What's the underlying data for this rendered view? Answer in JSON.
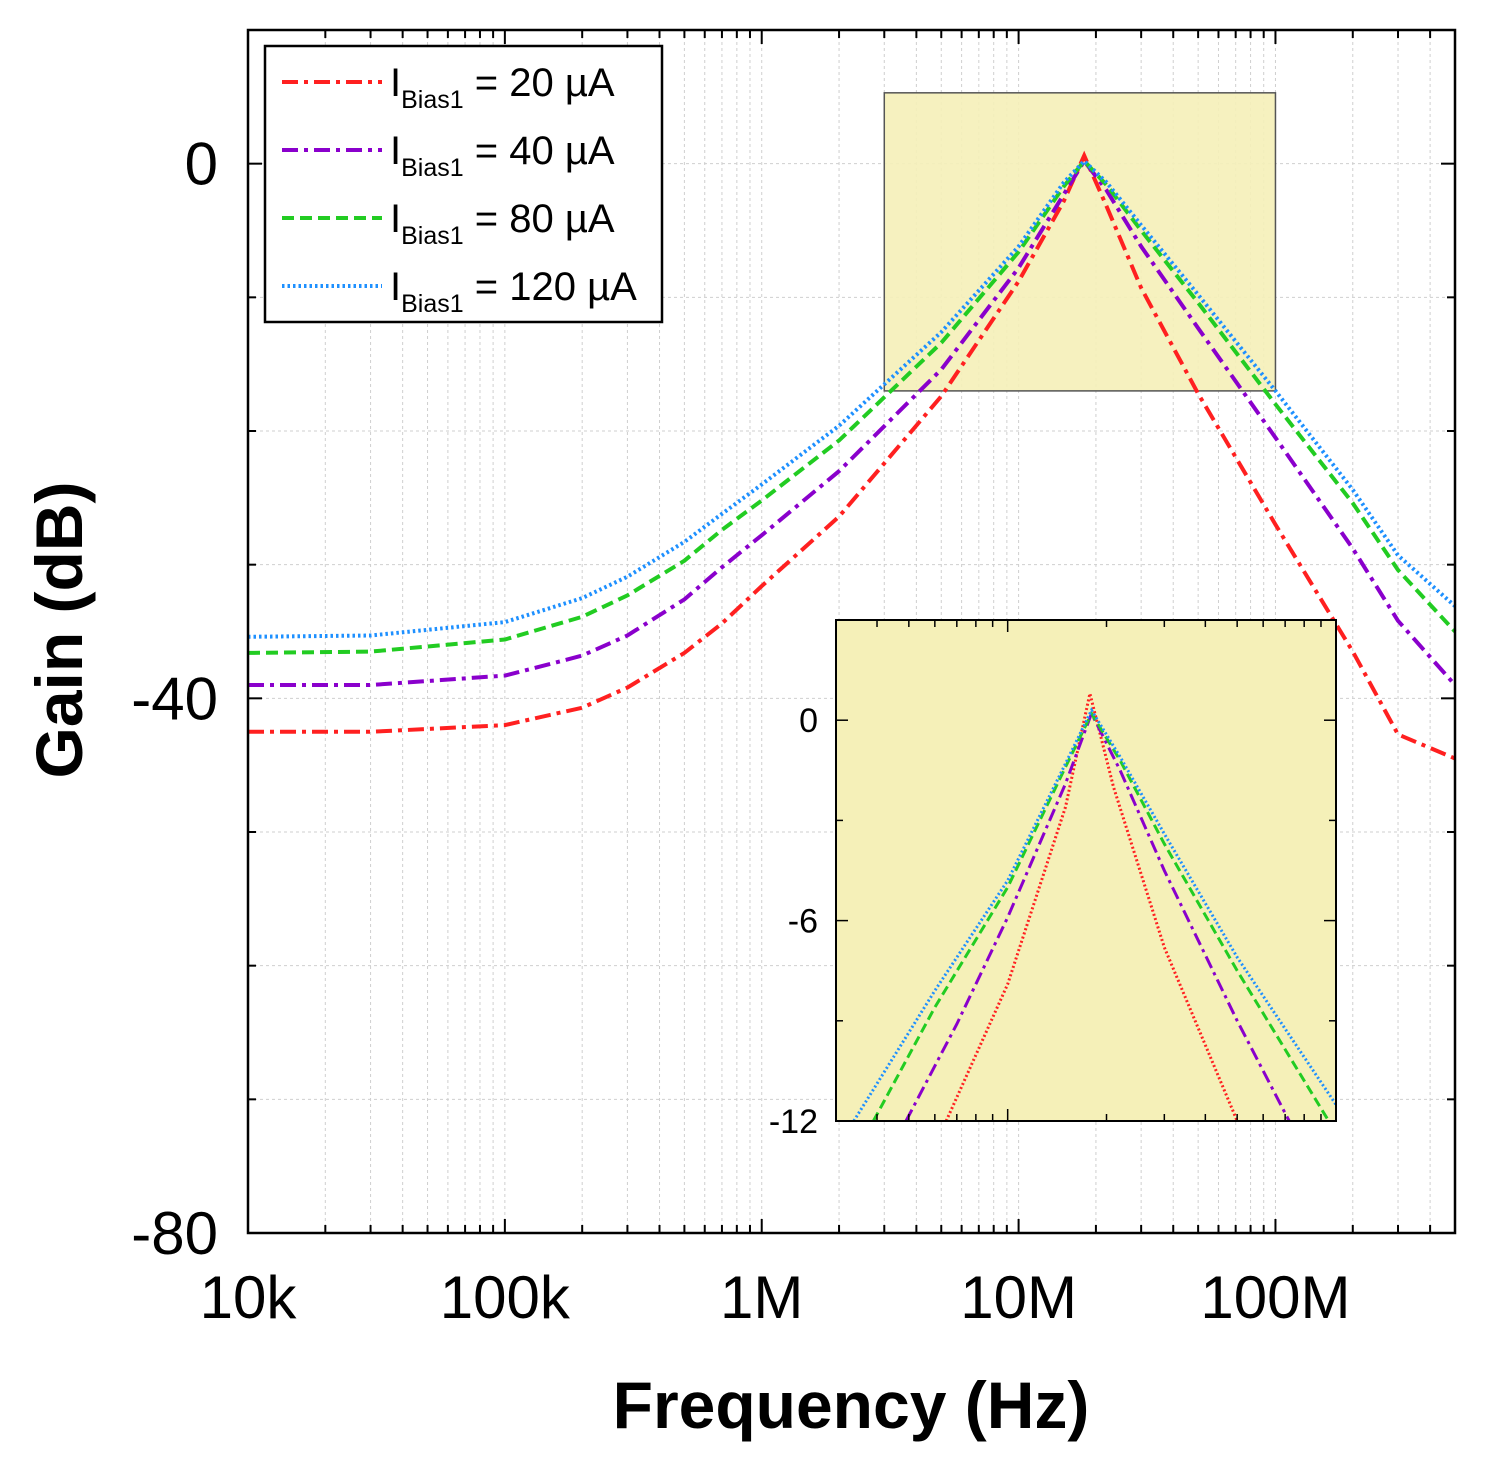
{
  "chart_data": [
    {
      "type": "line",
      "xlabel": "Frequency (Hz)",
      "ylabel": "Gain (dB)",
      "x_scale": "log",
      "xlim": [
        10000,
        500000000
      ],
      "ylim": [
        -80,
        10
      ],
      "x_ticks": [
        {
          "value": 10000,
          "label": "10k"
        },
        {
          "value": 100000,
          "label": "100k"
        },
        {
          "value": 1000000,
          "label": "1M"
        },
        {
          "value": 10000000,
          "label": "10M"
        },
        {
          "value": 100000000,
          "label": "100M"
        }
      ],
      "y_ticks": [
        {
          "value": 0,
          "label": "0"
        },
        {
          "value": -40,
          "label": "-40"
        },
        {
          "value": -80,
          "label": "-80"
        }
      ],
      "grid": true,
      "legend_position": "top-left",
      "legend": [
        {
          "symbol": "I",
          "subscript": "Bias1",
          "text": "= 20 µA"
        },
        {
          "symbol": "I",
          "subscript": "Bias1",
          "text": "= 40 µA"
        },
        {
          "symbol": "I",
          "subscript": "Bias1",
          "text": "= 80 µA"
        },
        {
          "symbol": "I",
          "subscript": "Bias1",
          "text": "= 120 µA"
        }
      ],
      "zoom_region": {
        "x": [
          3000000,
          100000000
        ],
        "y": [
          -17,
          5.3
        ],
        "color": "#f5f0b8"
      },
      "series": [
        {
          "color": "#ff2020",
          "dash": "dash-dot",
          "x": [
            10000,
            30000,
            100000,
            200000,
            300000,
            500000,
            700000,
            1000000,
            2000000,
            5000000,
            10000000,
            15000000,
            18000000,
            22000000,
            30000000,
            50000000,
            100000000,
            200000000,
            300000000,
            500000000
          ],
          "y": [
            -42.5,
            -42.5,
            -42.0,
            -40.7,
            -39.2,
            -36.6,
            -34.4,
            -31.6,
            -26.4,
            -17.4,
            -8.8,
            -2.8,
            0.6,
            -3.2,
            -9.3,
            -17.2,
            -27.0,
            -36.5,
            -42.7,
            -44.5
          ]
        },
        {
          "color": "#8a00cc",
          "dash": "dash-dot",
          "x": [
            10000,
            30000,
            100000,
            200000,
            300000,
            500000,
            700000,
            1000000,
            2000000,
            5000000,
            10000000,
            15000000,
            18000000,
            22000000,
            30000000,
            50000000,
            100000000,
            200000000,
            300000000,
            500000000
          ],
          "y": [
            -39.0,
            -39.0,
            -38.3,
            -36.8,
            -35.3,
            -32.6,
            -30.2,
            -27.8,
            -23.0,
            -15.4,
            -7.8,
            -2.3,
            0.2,
            -2.0,
            -6.2,
            -12.3,
            -20.5,
            -28.8,
            -34.2,
            -39.0
          ]
        },
        {
          "color": "#22cc22",
          "dash": "dashed",
          "x": [
            10000,
            30000,
            100000,
            200000,
            300000,
            500000,
            700000,
            1000000,
            2000000,
            5000000,
            10000000,
            15000000,
            18000000,
            22000000,
            30000000,
            50000000,
            100000000,
            200000000,
            300000000,
            500000000
          ],
          "y": [
            -36.6,
            -36.5,
            -35.6,
            -33.9,
            -32.3,
            -29.7,
            -27.4,
            -25.2,
            -20.7,
            -13.4,
            -6.6,
            -1.7,
            0.2,
            -1.6,
            -5.0,
            -10.4,
            -18.0,
            -25.4,
            -30.4,
            -35.0
          ]
        },
        {
          "color": "#1e90ff",
          "dash": "dotted",
          "x": [
            10000,
            30000,
            100000,
            200000,
            300000,
            500000,
            700000,
            1000000,
            2000000,
            5000000,
            10000000,
            15000000,
            18000000,
            22000000,
            30000000,
            50000000,
            100000000,
            200000000,
            300000000,
            500000000
          ],
          "y": [
            -35.4,
            -35.3,
            -34.3,
            -32.5,
            -30.9,
            -28.3,
            -26.2,
            -24.0,
            -19.6,
            -12.6,
            -6.2,
            -1.4,
            0.2,
            -1.4,
            -4.6,
            -9.8,
            -17.0,
            -24.4,
            -29.3,
            -33.1
          ]
        }
      ]
    },
    {
      "type": "line",
      "role": "inset",
      "x_scale": "log",
      "xlim": [
        3000000,
        100000000
      ],
      "ylim": [
        -12,
        3
      ],
      "y_ticks": [
        {
          "value": 0,
          "label": "0"
        },
        {
          "value": -6,
          "label": "-6"
        },
        {
          "value": -12,
          "label": "-12"
        }
      ],
      "background": "#f5f0b8",
      "series": [
        {
          "color": "#ff2020",
          "dash": "dotted",
          "x": [
            6500000,
            10000000,
            15000000,
            17800000,
            21000000,
            30000000,
            50000000
          ],
          "y": [
            -12.0,
            -7.9,
            -2.6,
            0.8,
            -2.0,
            -6.8,
            -12.0
          ]
        },
        {
          "color": "#8a00cc",
          "dash": "dash-dot",
          "x": [
            4900000,
            7000000,
            10000000,
            15000000,
            18000000,
            22000000,
            30000000,
            50000000,
            72000000
          ],
          "y": [
            -12.0,
            -9.1,
            -5.9,
            -1.9,
            0.2,
            -1.5,
            -4.5,
            -9.0,
            -12.0
          ]
        },
        {
          "color": "#22cc22",
          "dash": "dashed",
          "x": [
            3900000,
            6000000,
            10000000,
            15000000,
            18000000,
            22000000,
            30000000,
            50000000,
            95000000
          ],
          "y": [
            -12.0,
            -8.6,
            -5.0,
            -1.4,
            0.2,
            -1.2,
            -3.7,
            -7.5,
            -12.0
          ]
        },
        {
          "color": "#1e90ff",
          "dash": "dotted",
          "x": [
            3400000,
            6000000,
            10000000,
            15000000,
            18000000,
            22000000,
            30000000,
            50000000,
            108000000
          ],
          "y": [
            -12.0,
            -8.1,
            -4.8,
            -1.3,
            0.3,
            -1.1,
            -3.4,
            -7.1,
            -12.0
          ]
        }
      ]
    }
  ]
}
